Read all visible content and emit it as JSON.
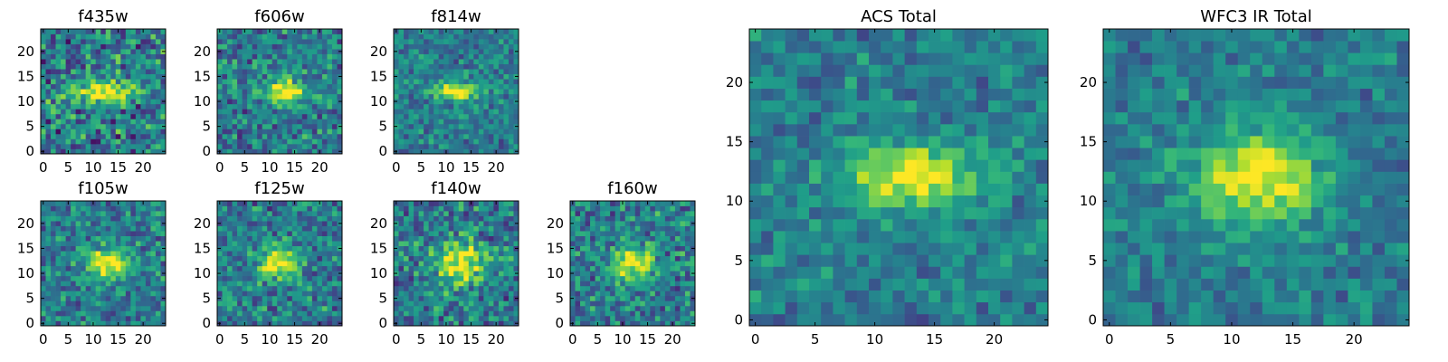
{
  "chart_data": [
    {
      "type": "heatmap",
      "title": "f435w",
      "grid_size": 25,
      "xticks": [
        0,
        5,
        10,
        15,
        20
      ],
      "yticks": [
        0,
        5,
        10,
        15,
        20
      ],
      "source_center": [
        12,
        12
      ],
      "source_width": [
        4.0,
        1.6
      ],
      "background_noise": 0.55,
      "colormap": "viridis",
      "seed": 11
    },
    {
      "type": "heatmap",
      "title": "f606w",
      "grid_size": 25,
      "xticks": [
        0,
        5,
        10,
        15,
        20
      ],
      "yticks": [
        0,
        5,
        10,
        15,
        20
      ],
      "source_center": [
        13,
        12
      ],
      "source_width": [
        3.5,
        1.5
      ],
      "background_noise": 0.45,
      "colormap": "viridis",
      "seed": 23
    },
    {
      "type": "heatmap",
      "title": "f814w",
      "grid_size": 25,
      "xticks": [
        0,
        5,
        10,
        15,
        20
      ],
      "yticks": [
        0,
        5,
        10,
        15,
        20
      ],
      "source_center": [
        12,
        12
      ],
      "source_width": [
        3.5,
        1.4
      ],
      "background_noise": 0.35,
      "colormap": "viridis",
      "seed": 37
    },
    {
      "type": "heatmap",
      "title": "f105w",
      "grid_size": 25,
      "xticks": [
        0,
        5,
        10,
        15,
        20
      ],
      "yticks": [
        0,
        5,
        10,
        15,
        20
      ],
      "source_center": [
        13,
        12
      ],
      "source_width": [
        2.8,
        2.2
      ],
      "background_noise": 0.4,
      "colormap": "viridis",
      "seed": 41
    },
    {
      "type": "heatmap",
      "title": "f125w",
      "grid_size": 25,
      "xticks": [
        0,
        5,
        10,
        15,
        20
      ],
      "yticks": [
        0,
        5,
        10,
        15,
        20
      ],
      "source_center": [
        12,
        12
      ],
      "source_width": [
        3.0,
        2.2
      ],
      "background_noise": 0.45,
      "colormap": "viridis",
      "seed": 53
    },
    {
      "type": "heatmap",
      "title": "f140w",
      "grid_size": 25,
      "xticks": [
        0,
        5,
        10,
        15,
        20
      ],
      "yticks": [
        0,
        5,
        10,
        15,
        20
      ],
      "source_center": [
        13,
        12
      ],
      "source_width": [
        3.5,
        3.0
      ],
      "background_noise": 0.45,
      "colormap": "viridis",
      "seed": 67
    },
    {
      "type": "heatmap",
      "title": "f160w",
      "grid_size": 25,
      "xticks": [
        0,
        5,
        10,
        15,
        20
      ],
      "yticks": [
        0,
        5,
        10,
        15,
        20
      ],
      "source_center": [
        12,
        12
      ],
      "source_width": [
        3.0,
        2.5
      ],
      "background_noise": 0.45,
      "colormap": "viridis",
      "seed": 79
    },
    {
      "type": "heatmap",
      "title": "ACS Total",
      "grid_size": 25,
      "xticks": [
        0,
        5,
        10,
        15,
        20
      ],
      "yticks": [
        0,
        5,
        10,
        15,
        20
      ],
      "source_center": [
        13,
        12
      ],
      "source_width": [
        4.2,
        1.8
      ],
      "background_noise": 0.3,
      "colormap": "viridis",
      "seed": 97
    },
    {
      "type": "heatmap",
      "title": "WFC3 IR Total",
      "grid_size": 25,
      "xticks": [
        0,
        5,
        10,
        15,
        20
      ],
      "yticks": [
        0,
        5,
        10,
        15,
        20
      ],
      "source_center": [
        12,
        12
      ],
      "source_width": [
        3.6,
        2.8
      ],
      "background_noise": 0.28,
      "colormap": "viridis",
      "seed": 131
    }
  ]
}
